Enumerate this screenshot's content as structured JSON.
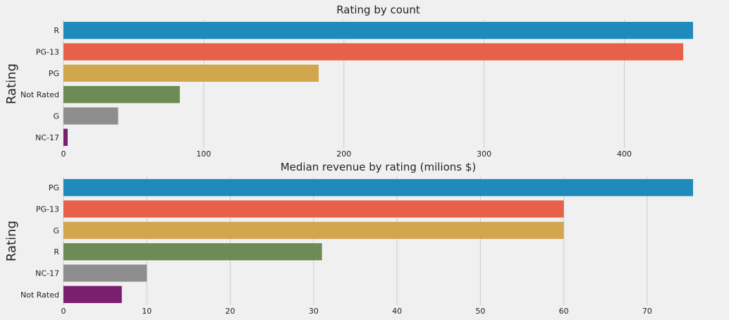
{
  "chart_data": [
    {
      "type": "bar",
      "orientation": "horizontal",
      "title": "Rating by count",
      "ylabel": "Rating",
      "xlabel": "",
      "categories": [
        "R",
        "PG-13",
        "PG",
        "Not Rated",
        "G",
        "NC-17"
      ],
      "values": [
        449,
        442,
        182,
        83,
        39,
        3
      ],
      "xlim": [
        0,
        449
      ],
      "xticks": [
        0,
        100,
        200,
        300,
        400
      ],
      "grid": "vertical",
      "colors": [
        "#1f8bbd",
        "#e8604a",
        "#d2a64d",
        "#6e8b56",
        "#8e8e8e",
        "#7a1f70"
      ]
    },
    {
      "type": "bar",
      "orientation": "horizontal",
      "title": "Median revenue by rating (milions $)",
      "ylabel": "Rating",
      "xlabel": "",
      "categories": [
        "PG",
        "PG-13",
        "G",
        "R",
        "NC-17",
        "Not Rated"
      ],
      "values": [
        75.5,
        60,
        60,
        31,
        10,
        7
      ],
      "xlim": [
        0,
        75.5
      ],
      "xticks": [
        0,
        10,
        20,
        30,
        40,
        50,
        60,
        70
      ],
      "grid": "vertical",
      "colors": [
        "#1f8bbd",
        "#e8604a",
        "#d2a64d",
        "#6e8b56",
        "#8e8e8e",
        "#7a1f70"
      ]
    }
  ]
}
